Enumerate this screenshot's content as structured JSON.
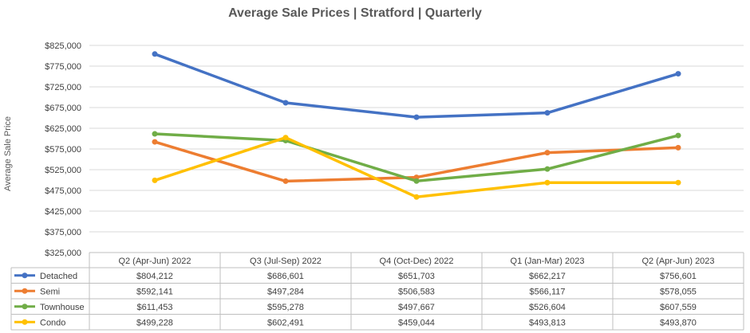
{
  "chart_data": {
    "type": "line",
    "title": "Average Sale Prices | Stratford | Quarterly",
    "ylabel": "Average Sale Price",
    "xlabel": "",
    "ylim": [
      325000,
      825000
    ],
    "yticks": [
      "$825,000",
      "$775,000",
      "$725,000",
      "$675,000",
      "$625,000",
      "$575,000",
      "$525,000",
      "$475,000",
      "$425,000",
      "$375,000",
      "$325,000"
    ],
    "ytick_values": [
      825000,
      775000,
      725000,
      675000,
      625000,
      575000,
      525000,
      475000,
      425000,
      375000,
      325000
    ],
    "grid": true,
    "legend": "data-table",
    "categories": [
      "Q2 (Apr-Jun) 2022",
      "Q3 (Jul-Sep) 2022",
      "Q4 (Oct-Dec) 2022",
      "Q1 (Jan-Mar) 2023",
      "Q2 (Apr-Jun) 2023"
    ],
    "series": [
      {
        "name": "Detached",
        "color": "#4472c4",
        "values": [
          804212,
          686601,
          651703,
          662217,
          756601
        ],
        "labels": [
          "$804,212",
          "$686,601",
          "$651,703",
          "$662,217",
          "$756,601"
        ]
      },
      {
        "name": "Semi",
        "color": "#ed7d31",
        "values": [
          592141,
          497284,
          506583,
          566117,
          578055
        ],
        "labels": [
          "$592,141",
          "$497,284",
          "$506,583",
          "$566,117",
          "$578,055"
        ]
      },
      {
        "name": "Townhouse",
        "color": "#70ad47",
        "values": [
          611453,
          595278,
          497667,
          526604,
          607559
        ],
        "labels": [
          "$611,453",
          "$595,278",
          "$497,667",
          "$526,604",
          "$607,559"
        ]
      },
      {
        "name": "Condo",
        "color": "#ffc000",
        "values": [
          499228,
          602491,
          459044,
          493813,
          493870
        ],
        "labels": [
          "$499,228",
          "$602,491",
          "$459,044",
          "$493,813",
          "$493,870"
        ]
      }
    ]
  }
}
